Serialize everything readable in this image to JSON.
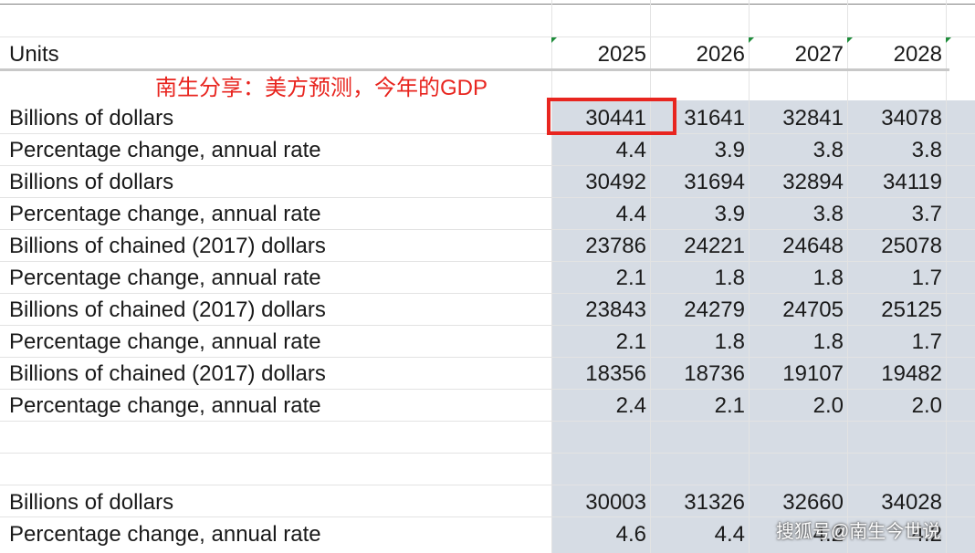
{
  "header": {
    "units_label": "Units",
    "years": [
      "2025",
      "2026",
      "2027",
      "2028"
    ]
  },
  "annotation": "南生分享：美方预测，今年的GDP",
  "rows": [
    {
      "label": "Billions of dollars",
      "values": [
        "30441",
        "31641",
        "32841",
        "34078"
      ]
    },
    {
      "label": "Percentage change, annual rate",
      "values": [
        "4.4",
        "3.9",
        "3.8",
        "3.8"
      ]
    },
    {
      "label": "Billions of dollars",
      "values": [
        "30492",
        "31694",
        "32894",
        "34119"
      ]
    },
    {
      "label": "Percentage change, annual rate",
      "values": [
        "4.4",
        "3.9",
        "3.8",
        "3.7"
      ]
    },
    {
      "label": "Billions of chained (2017) dollars",
      "values": [
        "23786",
        "24221",
        "24648",
        "25078"
      ]
    },
    {
      "label": "Percentage change, annual rate",
      "values": [
        "2.1",
        "1.8",
        "1.8",
        "1.7"
      ]
    },
    {
      "label": "Billions of chained (2017) dollars",
      "values": [
        "23843",
        "24279",
        "24705",
        "25125"
      ]
    },
    {
      "label": "Percentage change, annual rate",
      "values": [
        "2.1",
        "1.8",
        "1.8",
        "1.7"
      ]
    },
    {
      "label": "Billions of chained (2017) dollars",
      "values": [
        "18356",
        "18736",
        "19107",
        "19482"
      ]
    },
    {
      "label": "Percentage change, annual rate",
      "values": [
        "2.4",
        "2.1",
        "2.0",
        "2.0"
      ]
    },
    {
      "label": "",
      "values": [
        "",
        "",
        "",
        ""
      ]
    },
    {
      "label": "",
      "values": [
        "",
        "",
        "",
        ""
      ]
    },
    {
      "label": "Billions of dollars",
      "values": [
        "30003",
        "31326",
        "32660",
        "34028"
      ]
    },
    {
      "label": "Percentage change, annual rate",
      "values": [
        "4.6",
        "4.4",
        "4.2",
        "4.2"
      ]
    }
  ],
  "watermark": "搜狐号@南生今世说",
  "colors": {
    "annotation_red": "#e8251f",
    "shaded_area": "#d6dce4",
    "grid_line": "#e3e3e3",
    "comment_marker_green": "#1e8c3a"
  }
}
